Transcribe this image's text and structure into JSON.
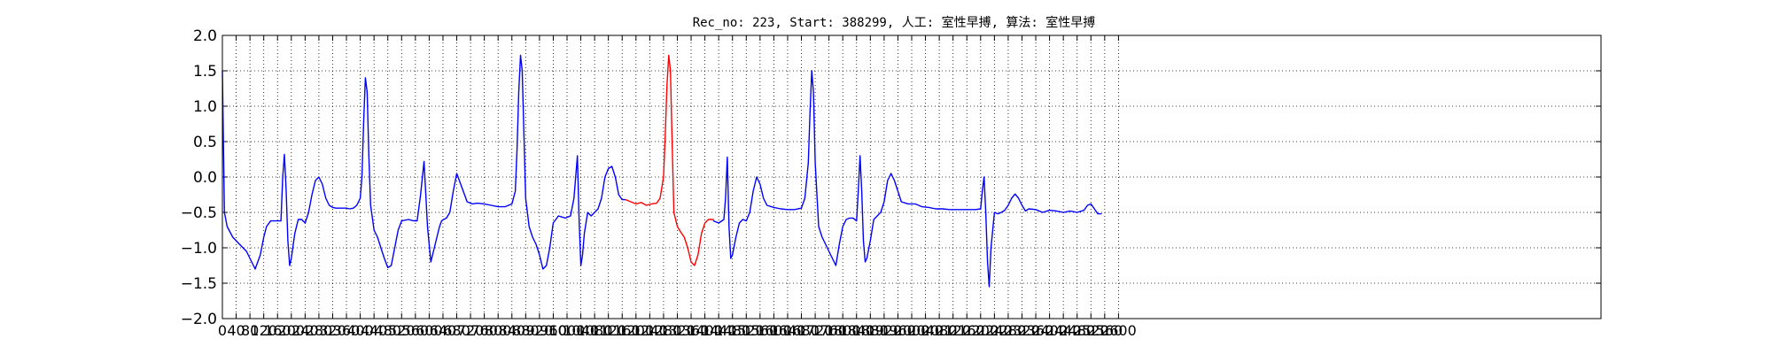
{
  "chart_data": {
    "type": "line",
    "title": "Rec_no: 223, Start: 388299, 人工: 室性早搏, 算法: 室性早搏",
    "xlabel": "",
    "ylabel": "",
    "xlim": [
      0,
      4000
    ],
    "ylim": [
      -2.0,
      2.0
    ],
    "grid": true,
    "y_ticks": [
      "2.0",
      "1.5",
      "1.0",
      "0.5",
      "0.0",
      "−0.5",
      "−1.0",
      "−1.5",
      "−2.0"
    ],
    "x_ticks": [
      "0",
      "40",
      "80",
      "120",
      "160",
      "200",
      "240",
      "280",
      "320",
      "360",
      "400",
      "440",
      "480",
      "520",
      "560",
      "600",
      "640",
      "680",
      "720",
      "760",
      "800",
      "840",
      "880",
      "920",
      "960",
      "1000",
      "1040",
      "1080",
      "1120",
      "1160",
      "1200",
      "1240",
      "1280",
      "1320",
      "1360",
      "1400",
      "1440",
      "1480",
      "1520",
      "1560",
      "1600",
      "1640",
      "1680",
      "1720",
      "1760",
      "1800",
      "1840",
      "1880",
      "1920",
      "1960",
      "2000",
      "2040",
      "2080",
      "2120",
      "2160",
      "2200",
      "2240",
      "2280",
      "2320",
      "2360",
      "2400",
      "2440",
      "2480",
      "2520",
      "2560",
      "2600"
    ],
    "colors": {
      "normal": "#0000ff",
      "highlight": "#ff0000"
    },
    "series": [
      {
        "color": "normal",
        "x": [
          0,
          6,
          14,
          30,
          50,
          70,
          85,
          95,
          110,
          120,
          128,
          140,
          160,
          170,
          175,
          180,
          185,
          190,
          195,
          200,
          210,
          220,
          230,
          240,
          250,
          260,
          270,
          280,
          290,
          300,
          310,
          320,
          330,
          340,
          350,
          360,
          370,
          380,
          390,
          400,
          405,
          410,
          415,
          420,
          425,
          430,
          440,
          450,
          460,
          470,
          480,
          490,
          500,
          510,
          520,
          540,
          555,
          565,
          575,
          585,
          595,
          605,
          615,
          625,
          630,
          636,
          642,
          650,
          660,
          670,
          680,
          695,
          710,
          725,
          740,
          760,
          780,
          800,
          820,
          840,
          850,
          855,
          860,
          865,
          870,
          880,
          890,
          900,
          910,
          920,
          930,
          940,
          950,
          960,
          975,
          995,
          1010,
          1020,
          1030,
          1035,
          1040,
          1045,
          1050,
          1060,
          1070,
          1080,
          1090,
          1100,
          1110,
          1120,
          1130,
          1140,
          1150,
          1160,
          1170
        ],
        "y": [
          1.5,
          -0.5,
          -0.7,
          -0.85,
          -0.95,
          -1.05,
          -1.2,
          -1.3,
          -1.1,
          -0.85,
          -0.7,
          -0.62,
          -0.62,
          -0.62,
          0.0,
          0.32,
          -0.2,
          -0.9,
          -1.25,
          -1.15,
          -0.8,
          -0.6,
          -0.6,
          -0.65,
          -0.5,
          -0.25,
          -0.05,
          0.0,
          -0.1,
          -0.3,
          -0.4,
          -0.43,
          -0.44,
          -0.44,
          -0.44,
          -0.44,
          -0.45,
          -0.44,
          -0.4,
          -0.3,
          0.0,
          0.8,
          1.4,
          1.2,
          0.3,
          -0.4,
          -0.75,
          -0.85,
          -1.0,
          -1.15,
          -1.28,
          -1.25,
          -1.0,
          -0.75,
          -0.62,
          -0.6,
          -0.62,
          -0.62,
          -0.25,
          0.22,
          -0.7,
          -1.2,
          -1.0,
          -0.8,
          -0.7,
          -0.62,
          -0.6,
          -0.58,
          -0.5,
          -0.2,
          0.05,
          -0.15,
          -0.35,
          -0.38,
          -0.37,
          -0.38,
          -0.4,
          -0.42,
          -0.42,
          -0.38,
          -0.2,
          0.4,
          1.2,
          1.72,
          1.5,
          -0.3,
          -0.7,
          -0.85,
          -0.95,
          -1.1,
          -1.3,
          -1.25,
          -1.0,
          -0.65,
          -0.55,
          -0.58,
          -0.55,
          -0.3,
          0.3,
          -0.6,
          -1.25,
          -1.1,
          -0.8,
          -0.5,
          -0.55,
          -0.5,
          -0.45,
          -0.3,
          0.0,
          0.12,
          0.15,
          0.0,
          -0.25,
          -0.32,
          -0.32
        ]
      },
      {
        "color": "highlight",
        "x": [
          1170,
          1185,
          1200,
          1215,
          1230,
          1245,
          1260,
          1270,
          1280,
          1285,
          1290,
          1295,
          1300,
          1305,
          1310,
          1320,
          1330,
          1340,
          1350,
          1360,
          1370,
          1380,
          1390,
          1400,
          1410,
          1420,
          1425
        ],
        "y": [
          -0.32,
          -0.35,
          -0.38,
          -0.36,
          -0.4,
          -0.38,
          -0.37,
          -0.3,
          0.0,
          0.6,
          1.3,
          1.72,
          1.5,
          0.5,
          -0.5,
          -0.7,
          -0.78,
          -0.85,
          -1.0,
          -1.2,
          -1.25,
          -1.1,
          -0.8,
          -0.65,
          -0.6,
          -0.6,
          -0.6
        ]
      },
      {
        "color": "normal",
        "x": [
          1425,
          1440,
          1455,
          1460,
          1465,
          1470,
          1475,
          1480,
          1490,
          1500,
          1510,
          1520,
          1530,
          1540,
          1550,
          1560,
          1570,
          1580,
          1600,
          1620,
          1640,
          1660,
          1680,
          1690,
          1700,
          1705,
          1710,
          1715,
          1720,
          1730,
          1740,
          1750,
          1760,
          1770,
          1780,
          1790,
          1800,
          1810,
          1820,
          1830,
          1840,
          1845,
          1850,
          1855,
          1860,
          1865,
          1870,
          1880,
          1890,
          1900,
          1910,
          1920,
          1930,
          1940,
          1950,
          1970,
          1990,
          2010,
          2030,
          2050,
          2070,
          2090,
          2110,
          2130,
          2150,
          2170,
          2185,
          2200,
          2205,
          2210,
          2215,
          2220,
          2225,
          2230,
          2240,
          2250,
          2260,
          2270,
          2280,
          2290,
          2300,
          2310,
          2320,
          2330,
          2340,
          2360,
          2380,
          2400,
          2420,
          2440,
          2460,
          2480,
          2500,
          2510,
          2520,
          2530,
          2540,
          2550
        ],
        "y": [
          -0.62,
          -0.65,
          -0.6,
          -0.3,
          0.28,
          -0.7,
          -1.15,
          -1.1,
          -0.85,
          -0.65,
          -0.6,
          -0.62,
          -0.5,
          -0.2,
          0.0,
          -0.1,
          -0.3,
          -0.4,
          -0.43,
          -0.45,
          -0.46,
          -0.46,
          -0.44,
          -0.3,
          0.2,
          0.9,
          1.5,
          1.2,
          0.2,
          -0.7,
          -0.85,
          -0.95,
          -1.05,
          -1.15,
          -1.25,
          -0.95,
          -0.7,
          -0.6,
          -0.58,
          -0.58,
          -0.62,
          -0.2,
          0.3,
          -0.2,
          -0.9,
          -1.2,
          -1.15,
          -0.9,
          -0.6,
          -0.55,
          -0.5,
          -0.35,
          -0.05,
          0.05,
          -0.05,
          -0.35,
          -0.38,
          -0.38,
          -0.42,
          -0.43,
          -0.45,
          -0.45,
          -0.46,
          -0.46,
          -0.46,
          -0.46,
          -0.46,
          -0.45,
          -0.2,
          0.0,
          -0.5,
          -1.2,
          -1.55,
          -1.0,
          -0.5,
          -0.52,
          -0.5,
          -0.47,
          -0.4,
          -0.3,
          -0.24,
          -0.3,
          -0.4,
          -0.48,
          -0.45,
          -0.46,
          -0.5,
          -0.47,
          -0.48,
          -0.5,
          -0.48,
          -0.5,
          -0.47,
          -0.4,
          -0.38,
          -0.45,
          -0.52,
          -0.52
        ]
      }
    ]
  }
}
